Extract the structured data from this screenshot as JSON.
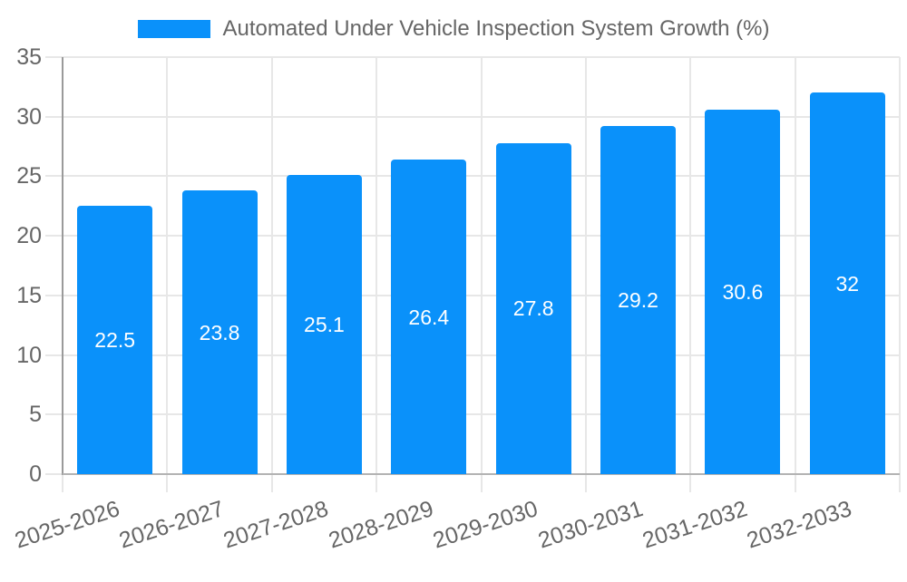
{
  "legend": {
    "label": "Automated Under Vehicle Inspection System Growth (%)"
  },
  "chart_data": {
    "type": "bar",
    "title": "Automated Under Vehicle Inspection System Growth (%)",
    "series_name": "Automated Under Vehicle Inspection System Growth (%)",
    "categories": [
      "2025-2026",
      "2026-2027",
      "2027-2028",
      "2028-2029",
      "2029-2030",
      "2030-2031",
      "2031-2032",
      "2032-2033"
    ],
    "values": [
      22.5,
      23.8,
      25.1,
      26.4,
      27.8,
      29.2,
      30.6,
      32
    ],
    "value_labels": [
      "22.5",
      "23.8",
      "25.1",
      "26.4",
      "27.8",
      "29.2",
      "30.6",
      "32"
    ],
    "xlabel": "",
    "ylabel": "",
    "ylim": [
      0,
      35
    ],
    "yticks": [
      0,
      5,
      10,
      15,
      20,
      25,
      30,
      35
    ],
    "grid": true,
    "legend_position": "top",
    "x_labels_rotated": true
  },
  "colors": {
    "bar": "#0a91fa",
    "grid": "#e7e7e7",
    "axis_y": "#9a9a9a",
    "axis_x": "#b3b3b3",
    "tick_label": "#666666",
    "legend_text": "#666666",
    "value_label": "#ffffff",
    "background": "#ffffff"
  }
}
